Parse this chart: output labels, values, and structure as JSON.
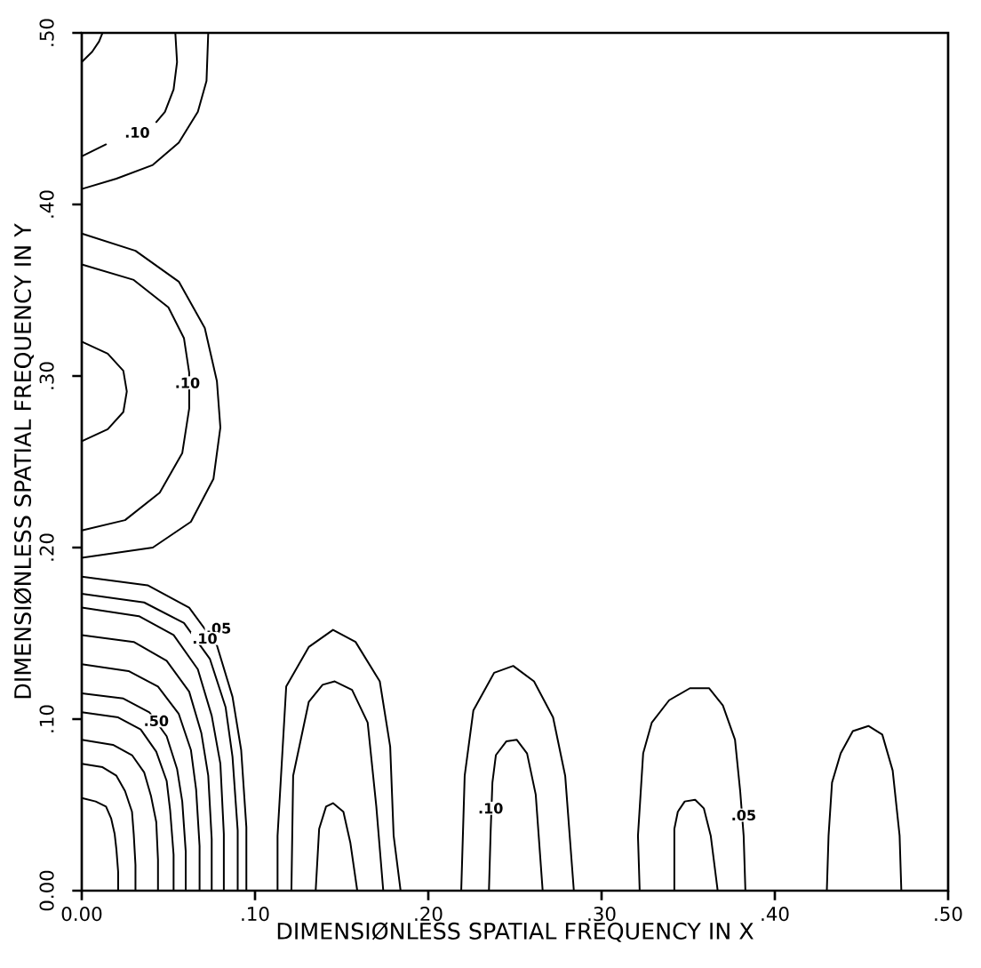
{
  "chart_data": {
    "type": "line",
    "xlabel": "DIMENSIØNLESS SPATIAL FREQUENCY IN X",
    "ylabel": "DIMENSIØNLESS SPATIAL FREQUENCY IN Y",
    "xlim": [
      0,
      0.5
    ],
    "ylim": [
      0,
      0.5
    ],
    "xticks": [
      {
        "value": 0,
        "label": "0.00"
      },
      {
        "value": 0.1,
        "label": ".10"
      },
      {
        "value": 0.2,
        "label": ".20"
      },
      {
        "value": 0.3,
        "label": ".30"
      },
      {
        "value": 0.4,
        "label": ".40"
      },
      {
        "value": 0.5,
        "label": ".50"
      }
    ],
    "yticks": [
      {
        "value": 0,
        "label": "0.00"
      },
      {
        "value": 0.1,
        "label": ".10"
      },
      {
        "value": 0.2,
        "label": ".20"
      },
      {
        "value": 0.3,
        "label": ".30"
      },
      {
        "value": 0.4,
        "label": ".40"
      },
      {
        "value": 0.5,
        "label": ".50"
      }
    ],
    "series": [
      {
        "color": "#000000",
        "x": [
          0,
          0.006,
          0.01,
          0.012
        ],
        "values": [
          0.483,
          0.489,
          0.495,
          0.5
        ]
      },
      {
        "color": "#000000",
        "x": [
          0,
          0.014,
          0.03,
          0.043,
          0.048,
          0.053,
          0.055,
          0.054
        ],
        "values": [
          0.428,
          0.435,
          null,
          0.448,
          0.454,
          0.467,
          0.483,
          0.5
        ]
      },
      {
        "color": "#000000",
        "x": [
          0,
          0.02,
          0.041,
          0.056,
          0.067,
          0.072,
          0.073
        ],
        "values": [
          0.409,
          0.415,
          0.423,
          0.436,
          0.454,
          0.472,
          0.5
        ]
      },
      {
        "color": "#000000",
        "x": [
          0,
          0.031,
          0.056,
          0.071,
          0.078,
          0.08,
          0.076,
          0.063,
          0.041,
          0
        ],
        "values": [
          0.383,
          0.373,
          0.355,
          0.328,
          0.297,
          0.27,
          0.24,
          0.215,
          0.2,
          0.194
        ]
      },
      {
        "color": "#000000",
        "x": [
          0,
          0.03,
          0.05,
          0.059,
          0.062,
          0.062,
          0.058,
          0.045,
          0.025,
          0
        ],
        "values": [
          0.365,
          0.356,
          0.34,
          0.322,
          0.302,
          0.281,
          0.255,
          0.232,
          0.216,
          0.21
        ]
      },
      {
        "color": "#000000",
        "x": [
          0,
          0.015,
          0.024,
          0.026,
          0.024,
          0.015,
          0
        ],
        "values": [
          0.32,
          0.313,
          0.303,
          0.291,
          0.279,
          0.269,
          0.262
        ]
      },
      {
        "color": "#000000",
        "x": [
          0,
          0.038,
          0.062,
          0.078,
          0.087,
          0.092,
          0.095,
          0.095
        ],
        "values": [
          0.183,
          0.178,
          0.165,
          0.143,
          0.113,
          0.082,
          0.037,
          0
        ]
      },
      {
        "color": "#000000",
        "x": [
          0,
          0.036,
          0.059,
          0.074,
          0.083,
          0.087,
          0.09,
          0.09
        ],
        "values": [
          0.173,
          0.168,
          0.156,
          0.135,
          0.107,
          0.078,
          0.035,
          0
        ]
      },
      {
        "color": "#000000",
        "x": [
          0,
          0.033,
          0.053,
          0.067,
          0.075,
          0.08,
          0.082,
          0.082
        ],
        "values": [
          0.165,
          0.16,
          0.149,
          0.129,
          0.102,
          0.074,
          0.033,
          0
        ]
      },
      {
        "color": "#000000",
        "x": [
          0,
          0.03,
          0.049,
          0.062,
          0.069,
          0.073,
          0.075,
          0.075
        ],
        "values": [
          0.149,
          0.145,
          0.134,
          0.116,
          0.092,
          0.067,
          0.03,
          0
        ]
      },
      {
        "color": "#000000",
        "x": [
          0,
          0.027,
          0.044,
          0.056,
          0.063,
          0.066,
          0.068,
          0.068
        ],
        "values": [
          0.132,
          0.128,
          0.119,
          0.103,
          0.082,
          0.059,
          0.026,
          0
        ]
      },
      {
        "color": "#000000",
        "x": [
          0,
          0.024,
          0.039,
          0.049,
          0.055,
          0.058,
          0.06,
          0.06
        ],
        "values": [
          0.115,
          0.112,
          0.104,
          0.09,
          0.071,
          0.052,
          0.023,
          0
        ]
      },
      {
        "color": "#000000",
        "x": [
          0,
          0.021,
          0.034,
          0.043,
          0.049,
          0.051,
          0.053,
          0.053
        ],
        "values": [
          0.104,
          0.101,
          0.094,
          0.081,
          0.064,
          0.047,
          0.021,
          0
        ]
      },
      {
        "color": "#000000",
        "x": [
          0,
          0.018,
          0.029,
          0.036,
          0.04,
          0.043,
          0.044,
          0.044
        ],
        "values": [
          0.088,
          0.085,
          0.079,
          0.069,
          0.055,
          0.04,
          0.018,
          0
        ]
      },
      {
        "color": "#000000",
        "x": [
          0,
          0.012,
          0.02,
          0.025,
          0.029,
          0.03,
          0.031,
          0.031
        ],
        "values": [
          0.074,
          0.072,
          0.067,
          0.058,
          0.046,
          0.033,
          0.015,
          0
        ]
      },
      {
        "color": "#000000",
        "x": [
          0,
          0.008,
          0.014,
          0.017,
          0.019,
          0.02,
          0.021,
          0.021
        ],
        "values": [
          0.054,
          0.052,
          0.049,
          0.042,
          0.033,
          0.024,
          0.011,
          0
        ]
      },
      {
        "color": "#000000",
        "x": [
          0.113,
          0.113,
          0.118,
          0.131,
          0.145,
          0.158,
          0.172,
          0.178,
          0.18,
          0.184
        ],
        "values": [
          0,
          0.032,
          0.119,
          0.142,
          0.152,
          0.145,
          0.122,
          0.084,
          0.032,
          0
        ]
      },
      {
        "color": "#000000",
        "x": [
          0.121,
          0.122,
          0.131,
          0.139,
          0.146,
          0.156,
          0.165,
          0.17,
          0.174
        ],
        "values": [
          0,
          0.067,
          0.11,
          0.12,
          0.122,
          0.117,
          0.098,
          0.049,
          0
        ]
      },
      {
        "color": "#000000",
        "x": [
          0.135,
          0.137,
          0.141,
          0.145,
          0.151,
          0.155,
          0.159
        ],
        "values": [
          0,
          0.036,
          0.049,
          0.051,
          0.046,
          0.028,
          0
        ]
      },
      {
        "color": "#000000",
        "x": [
          0.219,
          0.221,
          0.226,
          0.238,
          0.249,
          0.261,
          0.272,
          0.279,
          0.284
        ],
        "values": [
          0,
          0.067,
          0.105,
          0.127,
          0.131,
          0.122,
          0.101,
          0.067,
          0
        ]
      },
      {
        "color": "#000000",
        "x": [
          0.235,
          0.236,
          0.237,
          0.239,
          0.245,
          0.251,
          0.257,
          0.262,
          0.266
        ],
        "values": [
          0,
          0.035,
          0.063,
          0.079,
          0.087,
          0.088,
          0.08,
          0.056,
          0
        ]
      },
      {
        "color": "#000000",
        "x": [
          0.322,
          0.321,
          0.324,
          0.329,
          0.339,
          0.351,
          0.362,
          0.37,
          0.377,
          0.38,
          0.382,
          0.383
        ],
        "values": [
          0,
          0.032,
          0.08,
          0.098,
          0.111,
          0.118,
          0.118,
          0.108,
          0.088,
          0.058,
          0.032,
          0
        ]
      },
      {
        "color": "#000000",
        "x": [
          0.342,
          0.342,
          0.344,
          0.348,
          0.354,
          0.359,
          0.363,
          0.367
        ],
        "values": [
          0,
          0.036,
          0.046,
          0.052,
          0.053,
          0.048,
          0.032,
          0
        ]
      },
      {
        "color": "#000000",
        "x": [
          0.43,
          0.431,
          0.433,
          0.438,
          0.445,
          0.454,
          0.462,
          0.468,
          0.472,
          0.473
        ],
        "values": [
          0,
          0.032,
          0.063,
          0.08,
          0.093,
          0.096,
          0.091,
          0.07,
          0.032,
          0
        ]
      }
    ],
    "annotations": [
      {
        "text": ".10",
        "x": 0.032,
        "y": 0.442
      },
      {
        "text": ".10",
        "x": 0.061,
        "y": 0.296
      },
      {
        "text": ".05",
        "x": 0.079,
        "y": 0.153
      },
      {
        "text": ".10",
        "x": 0.071,
        "y": 0.147
      },
      {
        "text": ".50",
        "x": 0.043,
        "y": 0.099
      },
      {
        "text": ".10",
        "x": 0.236,
        "y": 0.048
      },
      {
        "text": ".05",
        "x": 0.382,
        "y": 0.044
      }
    ]
  }
}
